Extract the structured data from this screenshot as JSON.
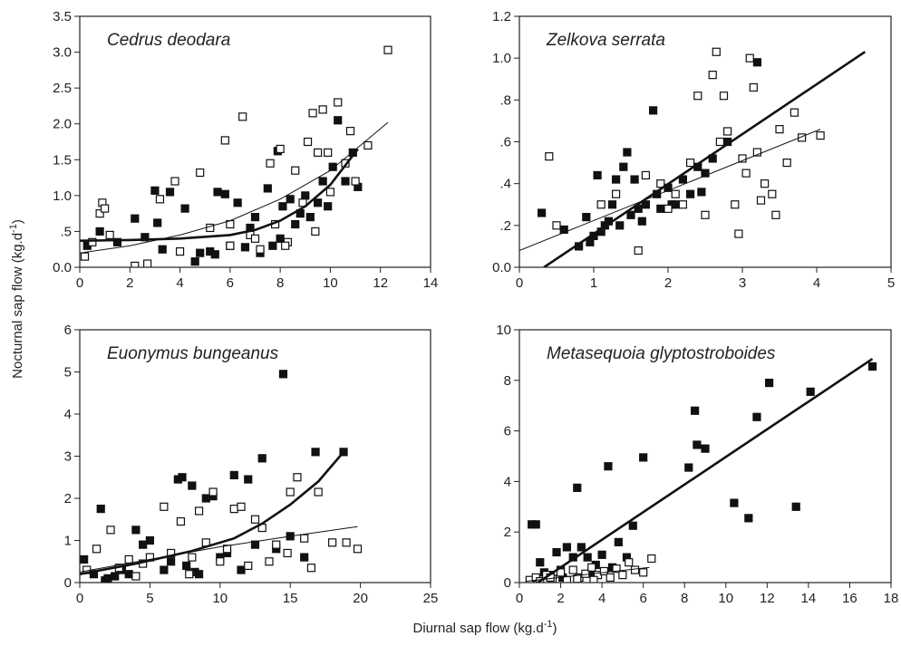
{
  "figure": {
    "y_label": "Nocturnal sap flow (kg.d",
    "y_label_sup": "-1",
    "y_label_end": ")",
    "x_label": "Diurnal sap flow (kg.d",
    "x_label_sup": "-1",
    "x_label_end": ")"
  },
  "chart_data": [
    {
      "type": "scatter",
      "title": "Cedrus deodara",
      "xlim": [
        0,
        14
      ],
      "xticks": [
        0,
        2,
        4,
        6,
        8,
        10,
        12,
        14
      ],
      "ylim": [
        0,
        3.5
      ],
      "yticks": [
        {
          "value": 0,
          "label": "0.0"
        },
        {
          "value": 0.5,
          "label": ".5"
        },
        {
          "value": 1,
          "label": "1.0"
        },
        1.5,
        {
          "value": 2,
          "label": "2.0"
        },
        2.5,
        {
          "value": 3,
          "label": "3.0"
        },
        3.5
      ],
      "series": [
        {
          "marker": "filled",
          "color": "#111111",
          "x": [
            0.3,
            0.8,
            1.5,
            2.2,
            2.6,
            3.0,
            3.3,
            3.6,
            4.2,
            4.6,
            4.8,
            5.2,
            5.5,
            5.8,
            6.0,
            6.3,
            6.6,
            7.0,
            7.2,
            7.5,
            7.7,
            7.9,
            8.1,
            8.4,
            8.6,
            8.8,
            9.0,
            9.2,
            9.5,
            9.7,
            9.9,
            10.1,
            10.3,
            10.6,
            10.9,
            11.1,
            3.1,
            5.4,
            6.8,
            8.0
          ],
          "y": [
            0.3,
            0.5,
            0.35,
            0.68,
            0.42,
            1.07,
            0.25,
            1.05,
            0.82,
            0.08,
            0.2,
            0.22,
            1.05,
            1.02,
            0.3,
            0.9,
            0.28,
            0.7,
            0.2,
            1.1,
            0.3,
            1.62,
            0.85,
            0.95,
            0.6,
            0.75,
            1.0,
            0.7,
            0.9,
            1.2,
            0.85,
            1.4,
            2.05,
            1.2,
            1.6,
            1.12,
            0.62,
            0.18,
            0.55,
            0.4
          ]
        },
        {
          "marker": "open",
          "color": "#111111",
          "x": [
            0.2,
            0.5,
            0.8,
            0.9,
            1.0,
            1.2,
            2.2,
            2.7,
            3.2,
            3.8,
            4.8,
            5.2,
            5.8,
            6.0,
            6.5,
            6.8,
            7.2,
            7.6,
            7.8,
            8.0,
            8.3,
            8.6,
            8.9,
            9.1,
            9.3,
            9.5,
            9.7,
            9.9,
            10.0,
            10.3,
            10.6,
            10.8,
            11.0,
            11.5,
            12.3,
            6.0,
            7.0,
            9.4,
            4.0,
            8.2
          ],
          "y": [
            0.15,
            0.35,
            0.75,
            0.9,
            0.82,
            0.45,
            0.02,
            0.05,
            0.95,
            1.2,
            1.32,
            0.55,
            1.77,
            0.3,
            2.1,
            0.45,
            0.25,
            1.45,
            0.6,
            1.65,
            0.35,
            1.35,
            0.9,
            1.75,
            2.15,
            1.6,
            2.2,
            1.6,
            1.05,
            2.3,
            1.45,
            1.9,
            1.2,
            1.7,
            3.03,
            0.6,
            0.4,
            0.5,
            0.22,
            0.3
          ]
        }
      ],
      "fits": [
        {
          "width": 2.6,
          "color": "#111111",
          "x": [
            0,
            2,
            4,
            6,
            7,
            8,
            9,
            10,
            11.1
          ],
          "y": [
            0.37,
            0.38,
            0.4,
            0.45,
            0.52,
            0.65,
            0.85,
            1.15,
            1.65
          ]
        },
        {
          "width": 1,
          "color": "#111111",
          "x": [
            0,
            2,
            4,
            6,
            8,
            10,
            12.3
          ],
          "y": [
            0.2,
            0.3,
            0.45,
            0.65,
            0.95,
            1.35,
            2.02
          ]
        }
      ]
    },
    {
      "type": "scatter",
      "title": "Zelkova serrata",
      "xlim": [
        0,
        5
      ],
      "xticks": [
        0,
        1,
        2,
        3,
        4,
        5
      ],
      "ylim": [
        0,
        1.2
      ],
      "yticks": [
        {
          "value": 0,
          "label": "0.0"
        },
        {
          "value": 0.2,
          "label": ".2"
        },
        {
          "value": 0.4,
          "label": ".4"
        },
        {
          "value": 0.6,
          "label": ".6"
        },
        {
          "value": 0.8,
          "label": ".8"
        },
        {
          "value": 1,
          "label": "1.0"
        },
        1.2
      ],
      "series": [
        {
          "marker": "filled",
          "color": "#111111",
          "x": [
            0.3,
            0.6,
            0.8,
            0.9,
            1.0,
            1.05,
            1.1,
            1.2,
            1.25,
            1.3,
            1.4,
            1.45,
            1.5,
            1.55,
            1.6,
            1.7,
            1.8,
            1.85,
            1.9,
            2.0,
            2.1,
            2.2,
            2.3,
            2.4,
            2.5,
            2.6,
            2.8,
            3.2,
            1.35,
            1.65,
            2.05,
            2.45,
            1.15,
            0.95
          ],
          "y": [
            0.26,
            0.18,
            0.1,
            0.24,
            0.15,
            0.44,
            0.17,
            0.22,
            0.3,
            0.42,
            0.48,
            0.55,
            0.25,
            0.42,
            0.28,
            0.3,
            0.75,
            0.35,
            0.28,
            0.38,
            0.3,
            0.42,
            0.35,
            0.48,
            0.45,
            0.52,
            0.6,
            0.98,
            0.2,
            0.22,
            0.3,
            0.36,
            0.2,
            0.12
          ]
        },
        {
          "marker": "open",
          "color": "#111111",
          "x": [
            0.4,
            0.5,
            1.1,
            1.3,
            1.6,
            1.7,
            1.9,
            2.1,
            2.3,
            2.4,
            2.5,
            2.6,
            2.65,
            2.7,
            2.8,
            2.9,
            2.95,
            3.0,
            3.1,
            3.15,
            3.2,
            3.3,
            3.4,
            3.5,
            3.6,
            3.7,
            3.8,
            4.05,
            2.2,
            2.75,
            3.05,
            3.25,
            2.0,
            3.45
          ],
          "y": [
            0.53,
            0.2,
            0.3,
            0.35,
            0.08,
            0.44,
            0.4,
            0.35,
            0.5,
            0.82,
            0.25,
            0.92,
            1.03,
            0.6,
            0.65,
            0.3,
            0.16,
            0.52,
            1.0,
            0.86,
            0.55,
            0.4,
            0.35,
            0.66,
            0.5,
            0.74,
            0.62,
            0.63,
            0.3,
            0.82,
            0.45,
            0.32,
            0.28,
            0.25
          ]
        }
      ],
      "fits": [
        {
          "width": 2.6,
          "color": "#111111",
          "x": [
            0.33,
            4.65
          ],
          "y": [
            0,
            1.03
          ]
        },
        {
          "width": 1,
          "color": "#111111",
          "x": [
            0,
            4.05
          ],
          "y": [
            0.08,
            0.66
          ]
        }
      ]
    },
    {
      "type": "scatter",
      "title": "Euonymus bungeanus",
      "xlim": [
        0,
        25
      ],
      "xticks": [
        0,
        5,
        10,
        15,
        20,
        25
      ],
      "ylim": [
        0,
        6
      ],
      "yticks": [
        0,
        1,
        2,
        3,
        4,
        5,
        6
      ],
      "series": [
        {
          "marker": "filled",
          "color": "#111111",
          "x": [
            0.3,
            1,
            1.5,
            1.8,
            2,
            2.5,
            3,
            4,
            4.5,
            5,
            6,
            7,
            7.3,
            7.6,
            8,
            8.5,
            9,
            9.5,
            10,
            11,
            11.5,
            12,
            13,
            14,
            14.5,
            15,
            16,
            16.8,
            18.8,
            6.5,
            8.2,
            10.5,
            12.5,
            3.5
          ],
          "y": [
            0.55,
            0.2,
            1.75,
            0.05,
            0.1,
            0.15,
            0.3,
            1.25,
            0.9,
            1.0,
            0.3,
            2.45,
            2.5,
            0.4,
            2.3,
            0.2,
            2.0,
            2.05,
            0.6,
            2.55,
            0.3,
            2.45,
            2.95,
            0.8,
            4.95,
            1.1,
            0.6,
            3.1,
            3.1,
            0.5,
            0.25,
            0.7,
            0.9,
            0.2
          ]
        },
        {
          "marker": "open",
          "color": "#111111",
          "x": [
            0.5,
            1.2,
            2.2,
            2.8,
            3.5,
            4.5,
            5,
            6,
            6.5,
            7.2,
            7.8,
            8.5,
            9,
            9.5,
            10.5,
            11,
            11.5,
            12,
            12.5,
            13,
            13.5,
            14,
            15,
            15.5,
            16,
            16.5,
            17,
            18,
            19,
            19.8,
            4,
            10,
            14.8,
            8
          ],
          "y": [
            0.3,
            0.8,
            1.25,
            0.35,
            0.55,
            0.45,
            0.6,
            1.8,
            0.7,
            1.45,
            0.2,
            1.7,
            0.95,
            2.15,
            0.8,
            1.75,
            1.8,
            0.4,
            1.5,
            1.3,
            0.5,
            0.9,
            2.15,
            2.5,
            1.05,
            0.35,
            2.15,
            0.95,
            0.95,
            0.8,
            0.15,
            0.5,
            0.7,
            0.6
          ]
        }
      ],
      "fits": [
        {
          "width": 2.6,
          "color": "#111111",
          "x": [
            0,
            4,
            8,
            11,
            13,
            15,
            17,
            18.8
          ],
          "y": [
            0.2,
            0.45,
            0.75,
            1.05,
            1.4,
            1.85,
            2.4,
            3.1
          ]
        },
        {
          "width": 1,
          "color": "#111111",
          "x": [
            0,
            5,
            10,
            15,
            19.8
          ],
          "y": [
            0.25,
            0.55,
            0.85,
            1.1,
            1.33
          ]
        }
      ]
    },
    {
      "type": "scatter",
      "title": "Metasequoia glyptostroboides",
      "xlim": [
        0,
        18
      ],
      "xticks": [
        0,
        2,
        4,
        6,
        8,
        10,
        12,
        14,
        16,
        18
      ],
      "ylim": [
        0,
        10
      ],
      "yticks": [
        0,
        2,
        4,
        6,
        8,
        10
      ],
      "series": [
        {
          "marker": "filled",
          "color": "#111111",
          "x": [
            0.6,
            0.8,
            1.0,
            1.5,
            1.8,
            2.0,
            2.3,
            2.6,
            2.8,
            3.0,
            3.3,
            3.7,
            4.0,
            4.3,
            4.5,
            4.8,
            5.2,
            5.5,
            6.0,
            8.2,
            8.5,
            8.6,
            9.0,
            10.4,
            11.1,
            11.5,
            12.1,
            13.4,
            14.1,
            17.1,
            3.5,
            2.1,
            1.2
          ],
          "y": [
            2.3,
            2.3,
            0.8,
            0.3,
            1.2,
            0.5,
            1.4,
            1.0,
            3.75,
            1.4,
            1.0,
            0.7,
            1.1,
            4.6,
            0.6,
            1.6,
            1.0,
            2.25,
            4.95,
            4.55,
            6.8,
            5.45,
            5.3,
            3.15,
            2.55,
            6.55,
            7.9,
            3.0,
            7.55,
            8.55,
            0.4,
            0.2,
            0.4
          ]
        },
        {
          "marker": "open",
          "color": "#111111",
          "x": [
            0.5,
            0.8,
            1.0,
            1.3,
            1.6,
            2.0,
            2.3,
            2.6,
            2.9,
            3.2,
            3.5,
            3.8,
            4.1,
            4.4,
            4.7,
            5.0,
            5.3,
            5.6,
            6.0,
            6.4,
            1.5,
            2.8,
            3.6
          ],
          "y": [
            0.1,
            0.2,
            0.05,
            0.3,
            0.15,
            0.4,
            0.1,
            0.5,
            0.2,
            0.35,
            0.6,
            0.3,
            0.45,
            0.2,
            0.55,
            0.3,
            0.8,
            0.5,
            0.4,
            0.95,
            0.2,
            0.15,
            0.1
          ]
        }
      ],
      "fits": [
        {
          "width": 2.6,
          "color": "#111111",
          "x": [
            0.9,
            17.1
          ],
          "y": [
            0,
            8.85
          ]
        },
        {
          "width": 1,
          "color": "#111111",
          "x": [
            0.3,
            6.3
          ],
          "y": [
            0.05,
            0.6
          ]
        }
      ]
    }
  ]
}
